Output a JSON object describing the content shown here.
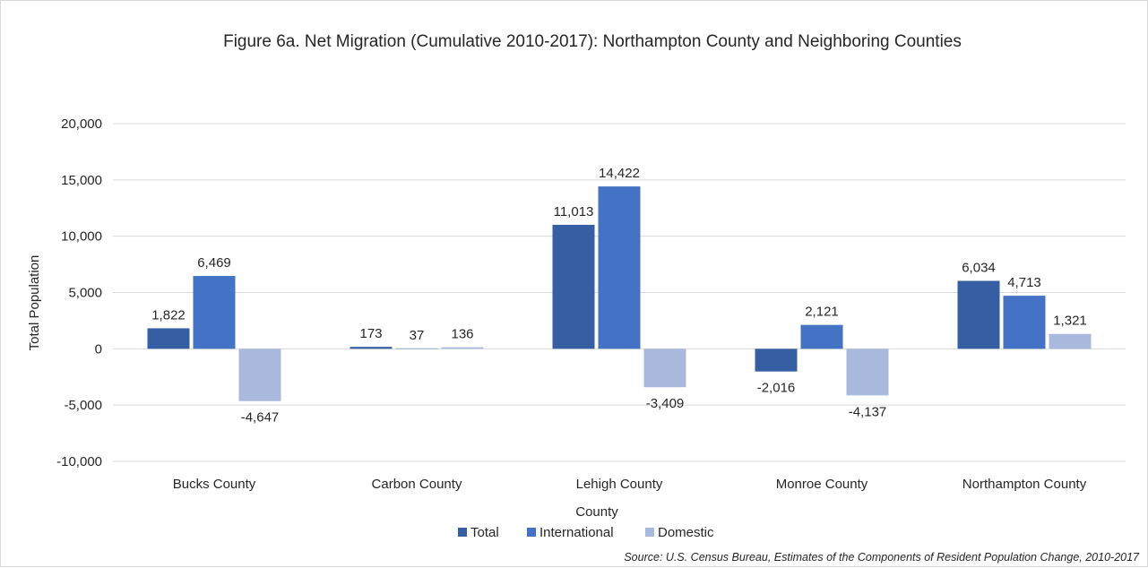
{
  "chart_data": {
    "type": "bar",
    "title": "Figure 6a. Net Migration (Cumulative 2010-2017): Northampton County and Neighboring Counties",
    "xlabel": "County",
    "ylabel": "Total Population",
    "ylim": [
      -10000,
      20000
    ],
    "yticks": [
      20000,
      15000,
      10000,
      5000,
      0,
      -5000,
      -10000
    ],
    "ytick_labels": [
      "20,000",
      "15,000",
      "10,000",
      "5,000",
      "0",
      "-5,000",
      "-10,000"
    ],
    "grid": true,
    "legend_position": "bottom",
    "categories": [
      "Bucks County",
      "Carbon County",
      "Lehigh County",
      "Monroe County",
      "Northampton County"
    ],
    "series": [
      {
        "name": "Total",
        "color": "#365fa3",
        "values": [
          1822,
          173,
          11013,
          -2016,
          6034
        ],
        "labels": [
          "1,822",
          "173",
          "11,013",
          "-2,016",
          "6,034"
        ]
      },
      {
        "name": "International",
        "color": "#4472c4",
        "values": [
          6469,
          37,
          14422,
          2121,
          4713
        ],
        "labels": [
          "6,469",
          "37",
          "14,422",
          "2,121",
          "4,713"
        ]
      },
      {
        "name": "Domestic",
        "color": "#a9b8dd",
        "values": [
          -4647,
          136,
          -3409,
          -4137,
          1321
        ],
        "labels": [
          "-4,647",
          "136",
          "-3,409",
          "-4,137",
          "1,321"
        ]
      }
    ],
    "source": "Source: U.S. Census Bureau, Estimates of the Components of Resident Population Change, 2010-2017"
  }
}
